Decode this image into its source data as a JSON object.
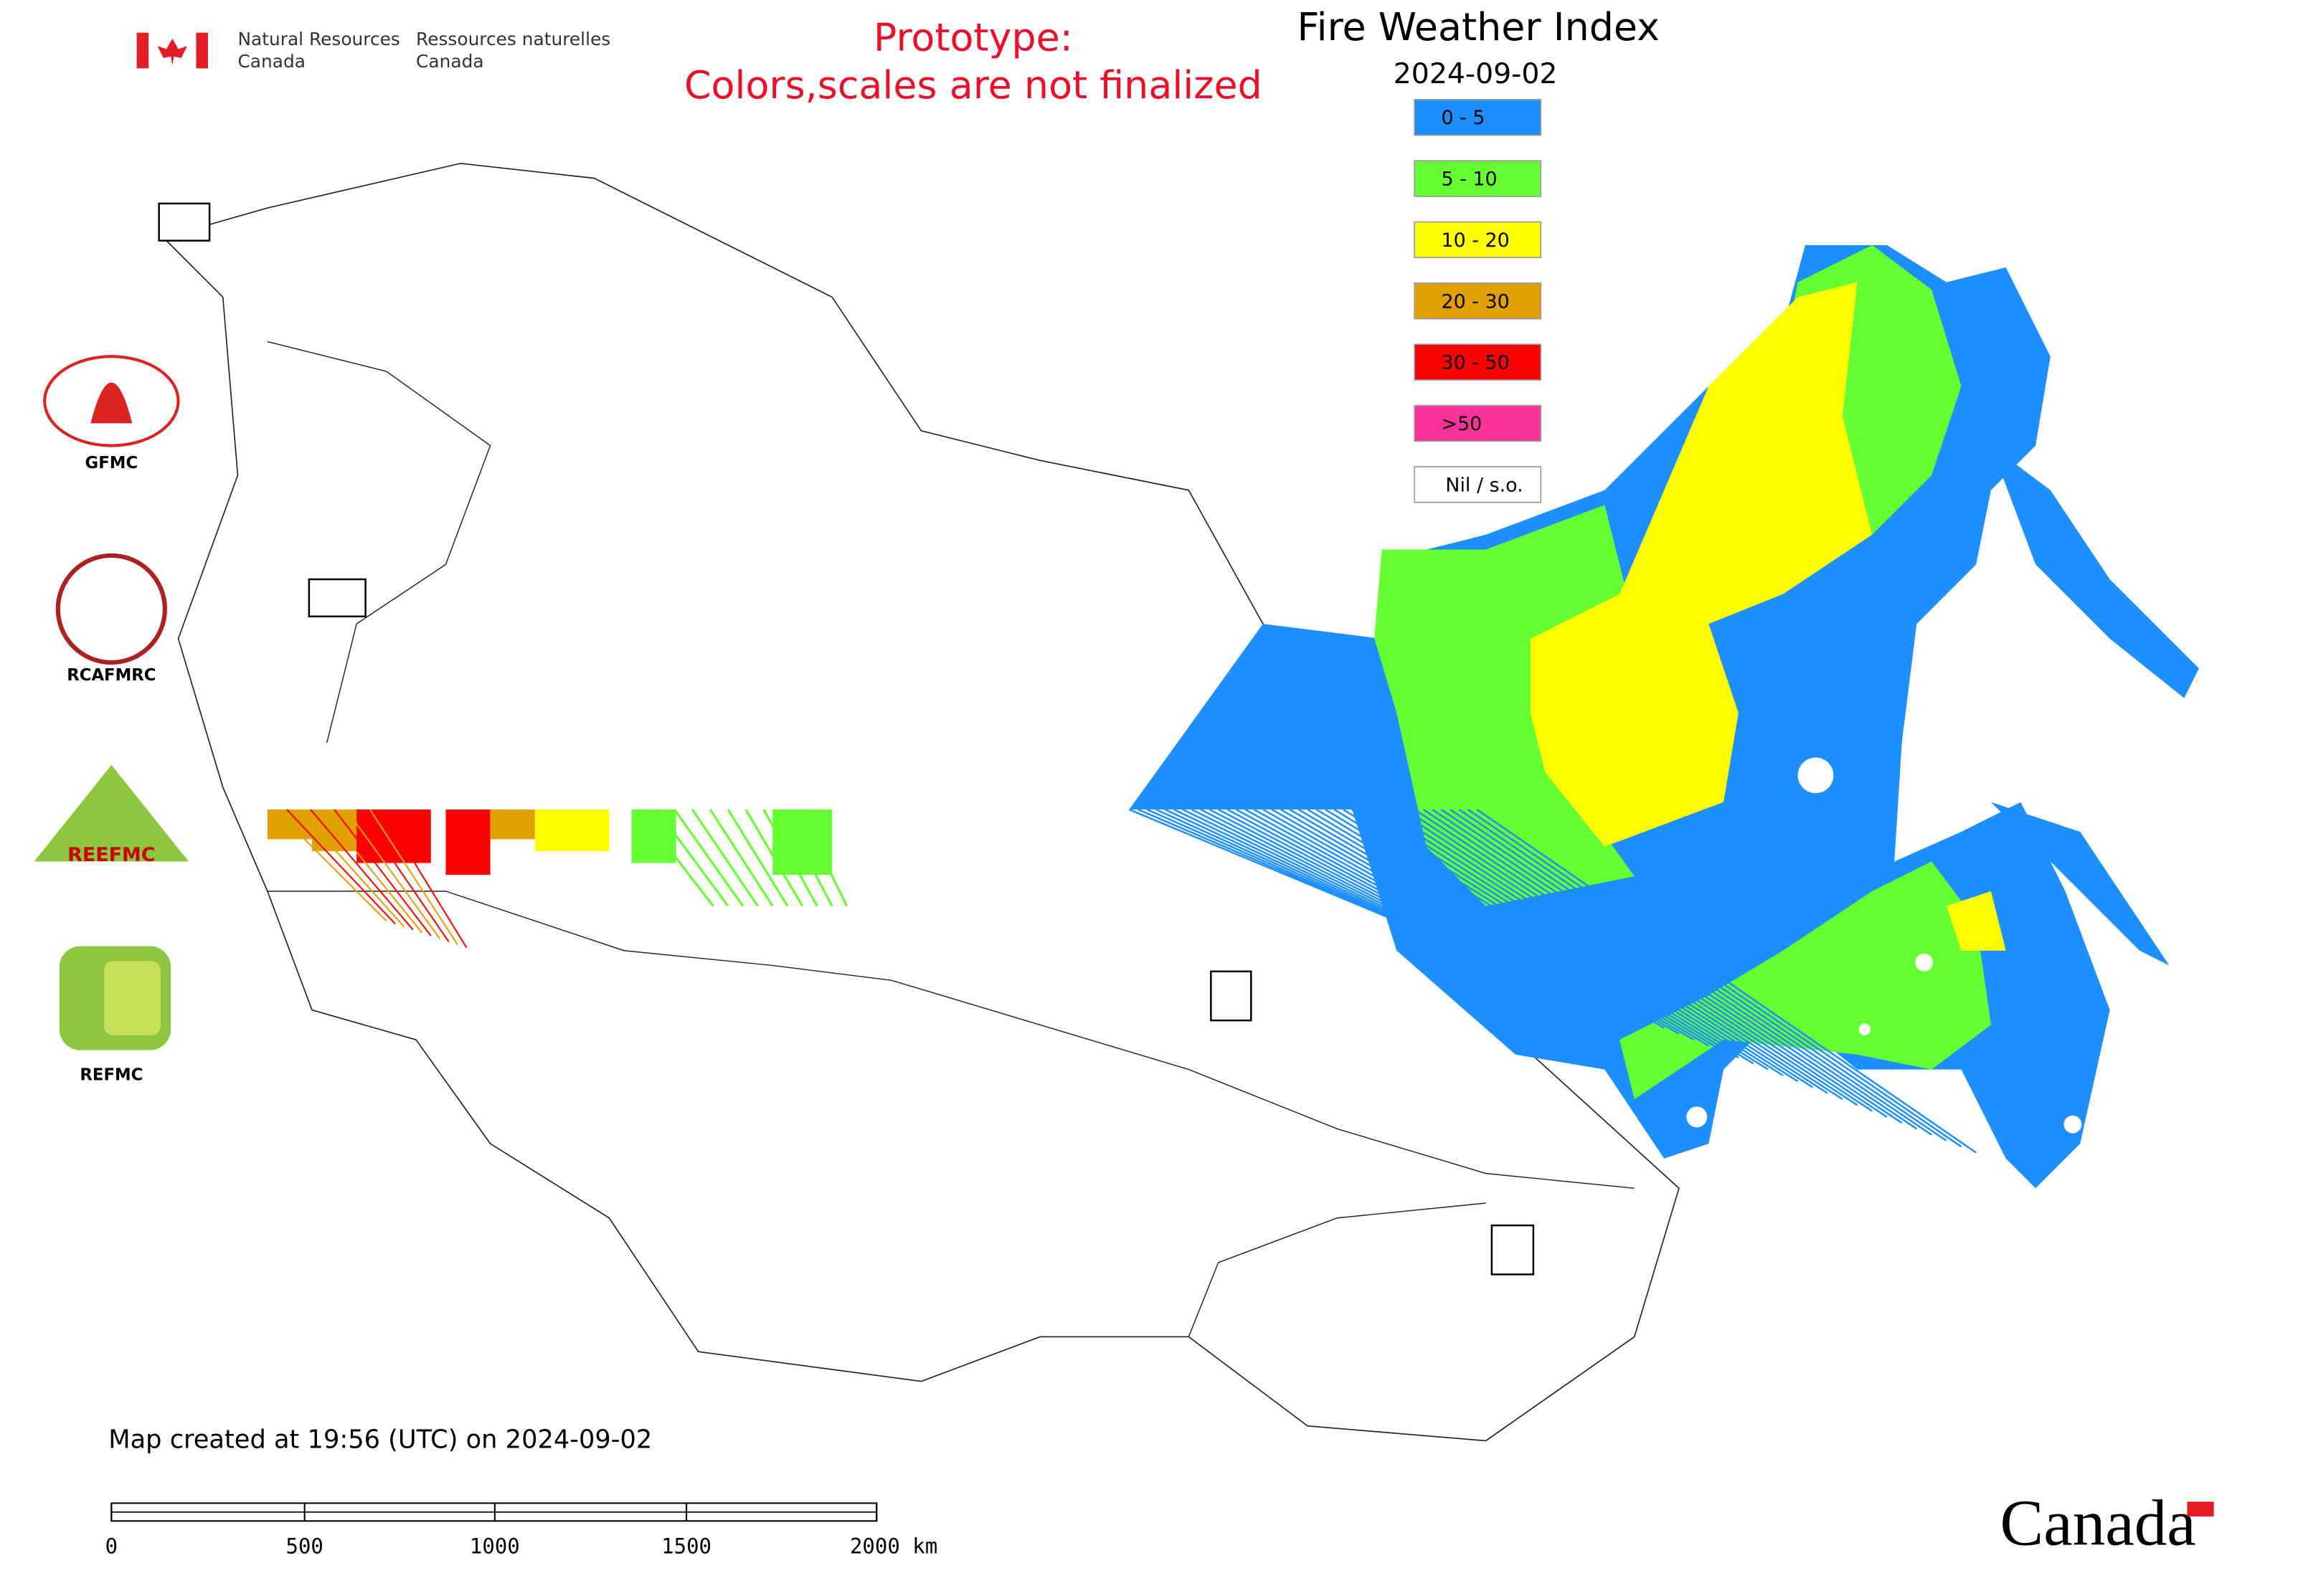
{
  "header": {
    "agency_en": [
      "Natural Resources",
      "Canada"
    ],
    "agency_fr": [
      "Ressources naturelles",
      "Canada"
    ],
    "warning": [
      "Prototype:",
      "Colors,scales are not finalized"
    ],
    "title": "Fire Weather Index",
    "date": "2024-09-02"
  },
  "legend": [
    {
      "label": "0 - 5",
      "color": "#1e8fff"
    },
    {
      "label": "5 - 10",
      "color": "#66ff33"
    },
    {
      "label": "10 - 20",
      "color": "#ffff00"
    },
    {
      "label": "20 - 30",
      "color": "#e0a000"
    },
    {
      "label": "30 - 50",
      "color": "#ff0000"
    },
    {
      "label": ">50",
      "color": "#ff3399"
    },
    {
      "label": "Nil / s.o.",
      "color": "#ffffff"
    }
  ],
  "logos": [
    "GFMC",
    "RCAFMRC",
    "REEFMC",
    "REFMC"
  ],
  "footer": {
    "created": "Map created at 19:56 (UTC) on 2024-09-02",
    "scale_labels": [
      "0",
      "500",
      "1000",
      "1500",
      "2000 km"
    ],
    "wordmark": "Canada"
  }
}
